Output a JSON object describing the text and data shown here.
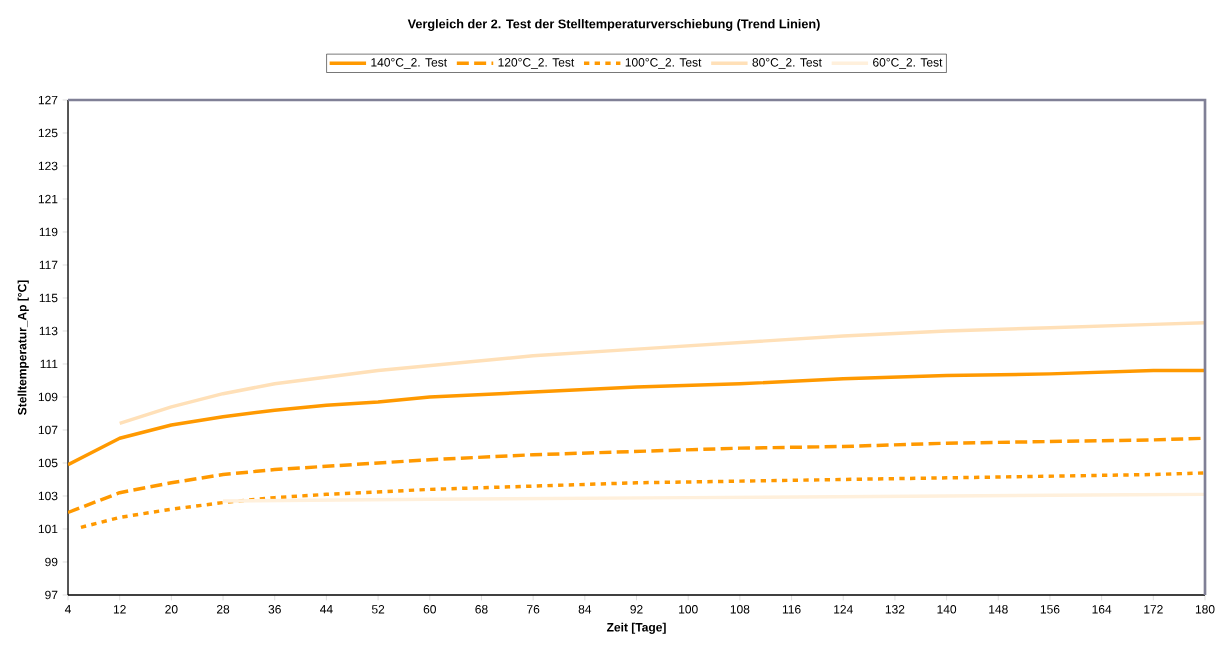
{
  "chart_data": {
    "type": "line",
    "title": "Vergleich der 2. Test der Stelltemperaturverschiebung (Trend Linien)",
    "xlabel": "Zeit [Tage]",
    "ylabel": "Stelltemperatur_Ap [°C]",
    "xlim": [
      4,
      180
    ],
    "xticks": [
      4,
      12,
      20,
      28,
      36,
      44,
      52,
      60,
      68,
      76,
      84,
      92,
      100,
      108,
      116,
      124,
      132,
      140,
      148,
      156,
      164,
      172,
      180
    ],
    "ylim": [
      97,
      127
    ],
    "yticks": [
      97,
      99,
      101,
      103,
      105,
      107,
      109,
      111,
      113,
      115,
      117,
      119,
      121,
      123,
      125,
      127
    ],
    "grid": false,
    "legend": "top",
    "marker": "none",
    "series": [
      {
        "name": "140°C_2. Test",
        "color": "#ff9900",
        "line_style": "solid",
        "x": [
          4,
          12,
          20,
          28,
          36,
          44,
          52,
          60,
          76,
          92,
          108,
          124,
          140,
          156,
          172,
          180
        ],
        "values": [
          104.9,
          106.5,
          107.3,
          107.8,
          108.2,
          108.5,
          108.7,
          109.0,
          109.3,
          109.6,
          109.8,
          110.1,
          110.3,
          110.4,
          110.6,
          110.6
        ]
      },
      {
        "name": "120°C_2. Test",
        "color": "#ff9900",
        "line_style": "dashed",
        "x": [
          4,
          12,
          20,
          28,
          36,
          44,
          52,
          60,
          76,
          92,
          108,
          124,
          140,
          156,
          172,
          180
        ],
        "values": [
          102.0,
          103.2,
          103.8,
          104.3,
          104.6,
          104.8,
          105.0,
          105.2,
          105.5,
          105.7,
          105.9,
          106.0,
          106.2,
          106.3,
          106.4,
          106.5
        ]
      },
      {
        "name": "100°C_2. Test",
        "color": "#ff9900",
        "line_style": "dotted",
        "x": [
          6,
          12,
          20,
          28,
          36,
          44,
          60,
          76,
          92,
          108,
          124,
          140,
          156,
          172,
          180
        ],
        "values": [
          101.1,
          101.7,
          102.2,
          102.6,
          102.9,
          103.1,
          103.4,
          103.6,
          103.8,
          103.9,
          104.0,
          104.1,
          104.2,
          104.3,
          104.4
        ]
      },
      {
        "name": "80°C_2. Test",
        "color": "#ffe0b8",
        "line_style": "solid",
        "x": [
          12,
          20,
          28,
          36,
          44,
          52,
          60,
          76,
          92,
          108,
          124,
          140,
          156,
          172,
          180
        ],
        "values": [
          107.4,
          108.4,
          109.2,
          109.8,
          110.2,
          110.6,
          110.9,
          111.5,
          111.9,
          112.3,
          112.7,
          113.0,
          113.2,
          113.4,
          113.5
        ]
      },
      {
        "name": "60°C_2. Test",
        "color": "#fff0dc",
        "line_style": "solid",
        "x": [
          28,
          60,
          100,
          140,
          180
        ],
        "values": [
          102.7,
          102.8,
          102.9,
          103.0,
          103.1
        ]
      }
    ]
  }
}
